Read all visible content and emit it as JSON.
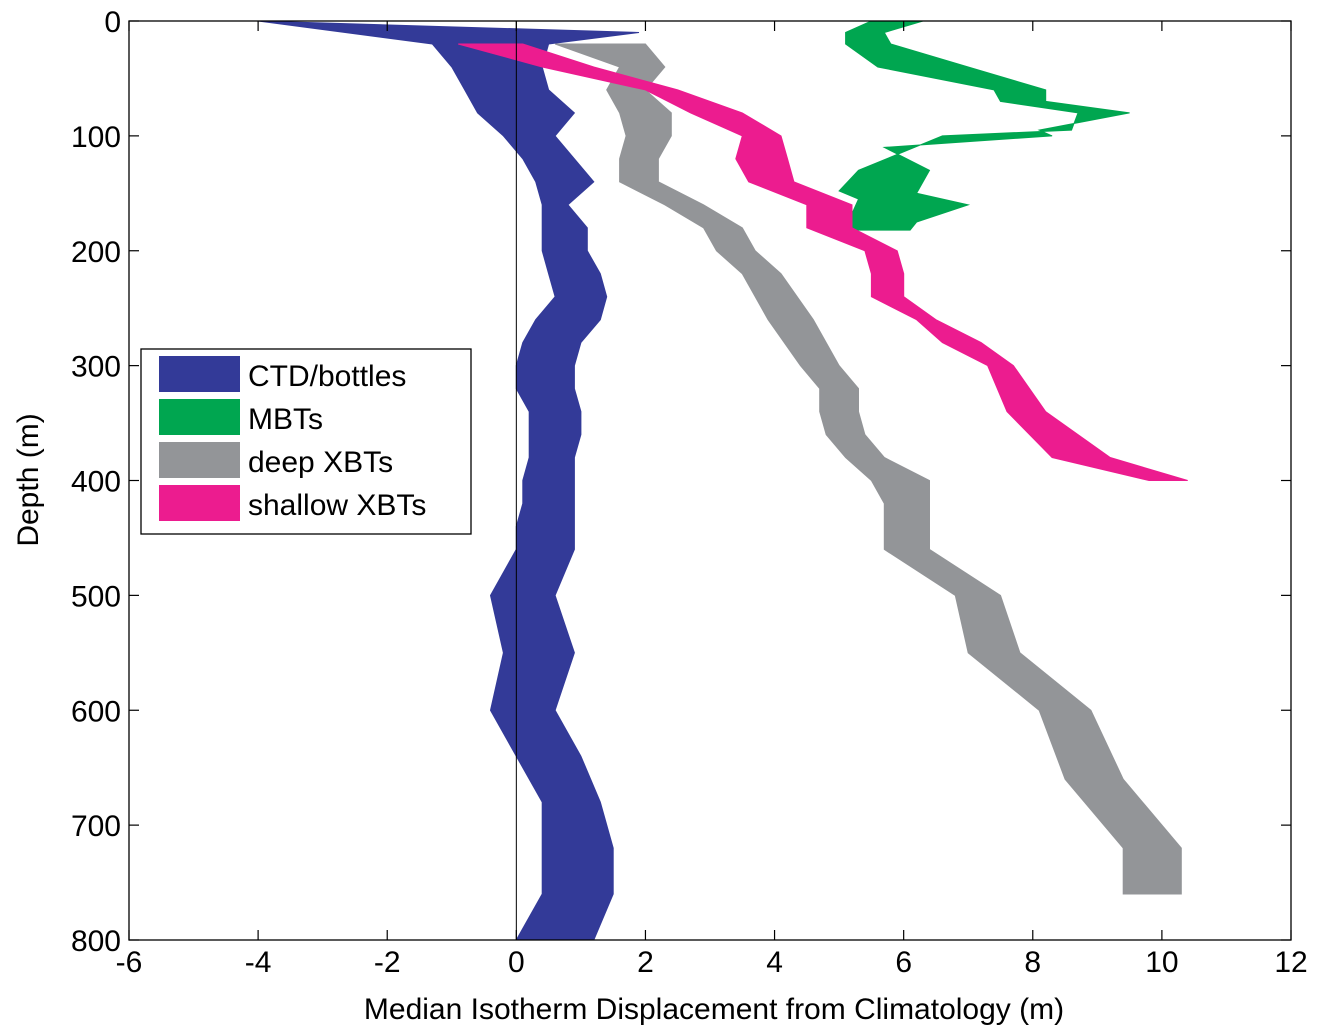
{
  "chart_data": {
    "type": "area",
    "title": "",
    "xlabel": "Median Isotherm Displacement from Climatology (m)",
    "ylabel": "Depth (m)",
    "xlim": [
      -6,
      12
    ],
    "ylim": [
      0,
      800
    ],
    "y_inverted": true,
    "xticks": [
      -6,
      -4,
      -2,
      0,
      2,
      4,
      6,
      8,
      10,
      12
    ],
    "yticks": [
      0,
      100,
      200,
      300,
      400,
      500,
      600,
      700,
      800
    ],
    "xtick_labels": [
      "-6",
      "-4",
      "-2",
      "0",
      "2",
      "4",
      "6",
      "8",
      "10",
      "12"
    ],
    "ytick_labels": [
      "0",
      "100",
      "200",
      "300",
      "400",
      "500",
      "600",
      "700",
      "800"
    ],
    "grid": false,
    "reference_line_x": 0,
    "legend": {
      "position": "middle-left"
    },
    "series": [
      {
        "name": "CTD/bottles",
        "color": "#333A98",
        "left": [
          [
            -4.0,
            0
          ],
          [
            -1.3,
            20
          ],
          [
            -1.0,
            40
          ],
          [
            -0.8,
            60
          ],
          [
            -0.6,
            80
          ],
          [
            -0.2,
            100
          ],
          [
            0.1,
            120
          ],
          [
            0.3,
            140
          ],
          [
            0.4,
            160
          ],
          [
            0.4,
            180
          ],
          [
            0.4,
            200
          ],
          [
            0.5,
            220
          ],
          [
            0.6,
            240
          ],
          [
            0.3,
            260
          ],
          [
            0.1,
            280
          ],
          [
            0.0,
            300
          ],
          [
            0.0,
            320
          ],
          [
            0.2,
            340
          ],
          [
            0.2,
            360
          ],
          [
            0.2,
            380
          ],
          [
            0.1,
            400
          ],
          [
            0.1,
            420
          ],
          [
            0.0,
            440
          ],
          [
            0.0,
            460
          ],
          [
            -0.4,
            500
          ],
          [
            -0.2,
            550
          ],
          [
            -0.4,
            600
          ],
          [
            0.0,
            640
          ],
          [
            0.4,
            680
          ],
          [
            0.4,
            720
          ],
          [
            0.4,
            760
          ],
          [
            0.0,
            800
          ]
        ],
        "right": [
          [
            1.9,
            10
          ],
          [
            0.5,
            20
          ],
          [
            0.4,
            40
          ],
          [
            0.5,
            60
          ],
          [
            0.9,
            80
          ],
          [
            0.6,
            100
          ],
          [
            0.9,
            120
          ],
          [
            1.2,
            140
          ],
          [
            0.8,
            160
          ],
          [
            1.1,
            180
          ],
          [
            1.1,
            200
          ],
          [
            1.3,
            220
          ],
          [
            1.4,
            240
          ],
          [
            1.3,
            260
          ],
          [
            1.0,
            280
          ],
          [
            0.9,
            300
          ],
          [
            0.9,
            320
          ],
          [
            1.0,
            340
          ],
          [
            1.0,
            360
          ],
          [
            0.9,
            380
          ],
          [
            0.9,
            400
          ],
          [
            0.9,
            420
          ],
          [
            0.9,
            440
          ],
          [
            0.9,
            460
          ],
          [
            0.6,
            500
          ],
          [
            0.9,
            550
          ],
          [
            0.6,
            600
          ],
          [
            1.0,
            640
          ],
          [
            1.3,
            680
          ],
          [
            1.5,
            720
          ],
          [
            1.5,
            760
          ],
          [
            1.2,
            800
          ]
        ]
      },
      {
        "name": "MBTs",
        "color": "#00A650",
        "left": [
          [
            5.5,
            0
          ],
          [
            5.1,
            10
          ],
          [
            5.1,
            20
          ],
          [
            5.6,
            40
          ],
          [
            7.4,
            60
          ],
          [
            7.5,
            70
          ],
          [
            8.7,
            80
          ],
          [
            8.6,
            95
          ],
          [
            6.6,
            100
          ],
          [
            5.3,
            130
          ],
          [
            5.0,
            148
          ],
          [
            5.3,
            155
          ],
          [
            5.1,
            180
          ],
          [
            5.1,
            182
          ]
        ],
        "right": [
          [
            6.3,
            0
          ],
          [
            5.7,
            10
          ],
          [
            5.8,
            20
          ],
          [
            7.0,
            40
          ],
          [
            8.2,
            60
          ],
          [
            8.2,
            70
          ],
          [
            9.5,
            80
          ],
          [
            8.1,
            95
          ],
          [
            8.3,
            100
          ],
          [
            5.7,
            110
          ],
          [
            6.4,
            130
          ],
          [
            6.2,
            150
          ],
          [
            7.0,
            160
          ],
          [
            6.2,
            175
          ],
          [
            6.1,
            182
          ]
        ]
      },
      {
        "name": "deep XBTs",
        "color": "#939598",
        "left": [
          [
            0.6,
            20
          ],
          [
            1.6,
            40
          ],
          [
            1.4,
            60
          ],
          [
            1.6,
            80
          ],
          [
            1.7,
            100
          ],
          [
            1.6,
            120
          ],
          [
            1.6,
            140
          ],
          [
            2.3,
            160
          ],
          [
            2.9,
            180
          ],
          [
            3.1,
            200
          ],
          [
            3.5,
            220
          ],
          [
            3.9,
            260
          ],
          [
            4.4,
            300
          ],
          [
            4.7,
            320
          ],
          [
            4.7,
            340
          ],
          [
            4.8,
            360
          ],
          [
            5.1,
            380
          ],
          [
            5.5,
            400
          ],
          [
            5.7,
            420
          ],
          [
            5.7,
            460
          ],
          [
            6.8,
            500
          ],
          [
            7.0,
            550
          ],
          [
            8.1,
            600
          ],
          [
            8.5,
            660
          ],
          [
            9.4,
            720
          ],
          [
            9.4,
            760
          ]
        ],
        "right": [
          [
            2.0,
            20
          ],
          [
            2.3,
            40
          ],
          [
            2.0,
            60
          ],
          [
            2.4,
            80
          ],
          [
            2.4,
            100
          ],
          [
            2.2,
            120
          ],
          [
            2.2,
            140
          ],
          [
            2.9,
            160
          ],
          [
            3.5,
            180
          ],
          [
            3.7,
            200
          ],
          [
            4.1,
            220
          ],
          [
            4.6,
            260
          ],
          [
            5.0,
            300
          ],
          [
            5.3,
            320
          ],
          [
            5.3,
            340
          ],
          [
            5.4,
            360
          ],
          [
            5.7,
            380
          ],
          [
            6.4,
            400
          ],
          [
            6.4,
            420
          ],
          [
            6.4,
            460
          ],
          [
            7.5,
            500
          ],
          [
            7.8,
            550
          ],
          [
            8.9,
            600
          ],
          [
            9.4,
            660
          ],
          [
            10.3,
            720
          ],
          [
            10.3,
            760
          ]
        ]
      },
      {
        "name": "shallow XBTs",
        "color": "#EC1C8F",
        "left": [
          [
            -0.9,
            20
          ],
          [
            0.4,
            40
          ],
          [
            2.0,
            60
          ],
          [
            2.7,
            80
          ],
          [
            3.5,
            100
          ],
          [
            3.4,
            120
          ],
          [
            3.6,
            140
          ],
          [
            4.5,
            160
          ],
          [
            4.5,
            180
          ],
          [
            5.4,
            200
          ],
          [
            5.5,
            220
          ],
          [
            5.5,
            240
          ],
          [
            6.2,
            260
          ],
          [
            6.6,
            280
          ],
          [
            7.3,
            300
          ],
          [
            7.6,
            340
          ],
          [
            8.3,
            380
          ],
          [
            9.8,
            400
          ]
        ],
        "right": [
          [
            0.1,
            20
          ],
          [
            1.2,
            40
          ],
          [
            2.5,
            60
          ],
          [
            3.5,
            80
          ],
          [
            4.1,
            100
          ],
          [
            4.2,
            120
          ],
          [
            4.3,
            140
          ],
          [
            5.2,
            160
          ],
          [
            5.2,
            180
          ],
          [
            5.9,
            200
          ],
          [
            6.0,
            220
          ],
          [
            6.0,
            240
          ],
          [
            6.5,
            260
          ],
          [
            7.2,
            280
          ],
          [
            7.7,
            300
          ],
          [
            8.2,
            340
          ],
          [
            9.2,
            380
          ],
          [
            10.4,
            400
          ]
        ]
      }
    ]
  }
}
